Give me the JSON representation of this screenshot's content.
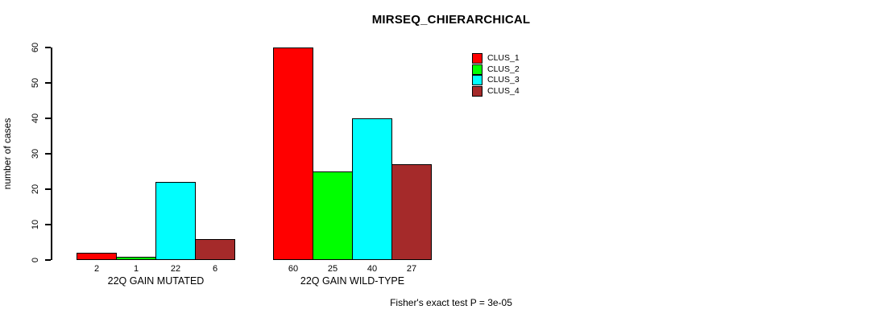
{
  "chart_data": {
    "type": "bar",
    "title": "MIRSEQ_CHIERARCHICAL",
    "ylabel": "number of cases",
    "xlabel": "",
    "ylim": [
      0,
      60
    ],
    "yticks": [
      0,
      10,
      20,
      30,
      40,
      50,
      60
    ],
    "grid": false,
    "legend_position": "top-right",
    "categories": [
      "22Q GAIN MUTATED",
      "22Q GAIN WILD-TYPE"
    ],
    "series": [
      {
        "name": "CLUS_1",
        "color": "#ff0000",
        "values": [
          2,
          60
        ]
      },
      {
        "name": "CLUS_2",
        "color": "#00ff00",
        "values": [
          1,
          25
        ]
      },
      {
        "name": "CLUS_3",
        "color": "#00ffff",
        "values": [
          22,
          40
        ]
      },
      {
        "name": "CLUS_4",
        "color": "#a52a2a",
        "values": [
          6,
          27
        ]
      }
    ],
    "bar_value_labels": [
      [
        "2",
        "1",
        "22",
        "6"
      ],
      [
        "60",
        "25",
        "40",
        "27"
      ]
    ],
    "annotation": "Fisher's exact test P = 3e-05"
  }
}
